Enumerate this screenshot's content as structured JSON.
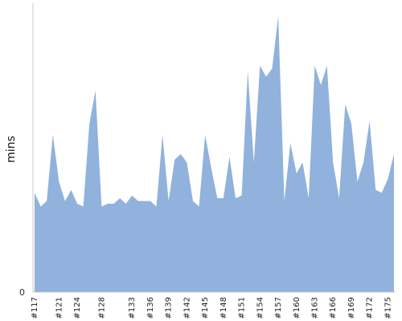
{
  "chart_data": {
    "type": "area",
    "title": "",
    "xlabel": "",
    "ylabel": "mins",
    "ylim": [
      0,
      100
    ],
    "y_tick_labels": [
      "0"
    ],
    "grid": false,
    "legend": "none",
    "fill_color": "#90b2dc",
    "x": [
      "#117",
      "#118",
      "#119",
      "#120",
      "#121",
      "#122",
      "#123",
      "#124",
      "#125",
      "#126",
      "#127",
      "#128",
      "#129",
      "#130",
      "#131",
      "#132",
      "#133",
      "#134",
      "#135",
      "#136",
      "#137",
      "#138",
      "#139",
      "#140",
      "#141",
      "#142",
      "#143",
      "#144",
      "#145",
      "#146",
      "#147",
      "#148",
      "#149",
      "#150",
      "#151",
      "#152",
      "#153",
      "#154",
      "#155",
      "#156",
      "#157",
      "#158",
      "#159",
      "#160",
      "#161",
      "#162",
      "#163",
      "#164",
      "#165",
      "#166",
      "#167",
      "#168",
      "#169",
      "#170",
      "#171",
      "#172",
      "#173",
      "#174",
      "#175",
      "#176"
    ],
    "x_tick_labels": [
      "#117",
      "#121",
      "#124",
      "#128",
      "#133",
      "#136",
      "#139",
      "#142",
      "#145",
      "#148",
      "#151",
      "#154",
      "#157",
      "#160",
      "#163",
      "#166",
      "#169",
      "#172",
      "#175"
    ],
    "values": [
      36,
      31,
      33,
      57,
      40,
      33,
      37,
      32,
      31,
      61,
      73,
      31,
      32,
      32,
      34,
      32,
      35,
      33,
      33,
      33,
      31,
      57,
      33,
      48,
      50,
      47,
      33,
      31,
      57,
      45,
      34,
      34,
      49,
      34,
      35,
      80,
      47,
      82,
      78,
      81,
      100,
      33,
      54,
      43,
      47,
      34,
      82,
      75,
      82,
      47,
      34,
      68,
      61,
      40,
      47,
      62,
      37,
      36,
      41,
      50
    ]
  }
}
